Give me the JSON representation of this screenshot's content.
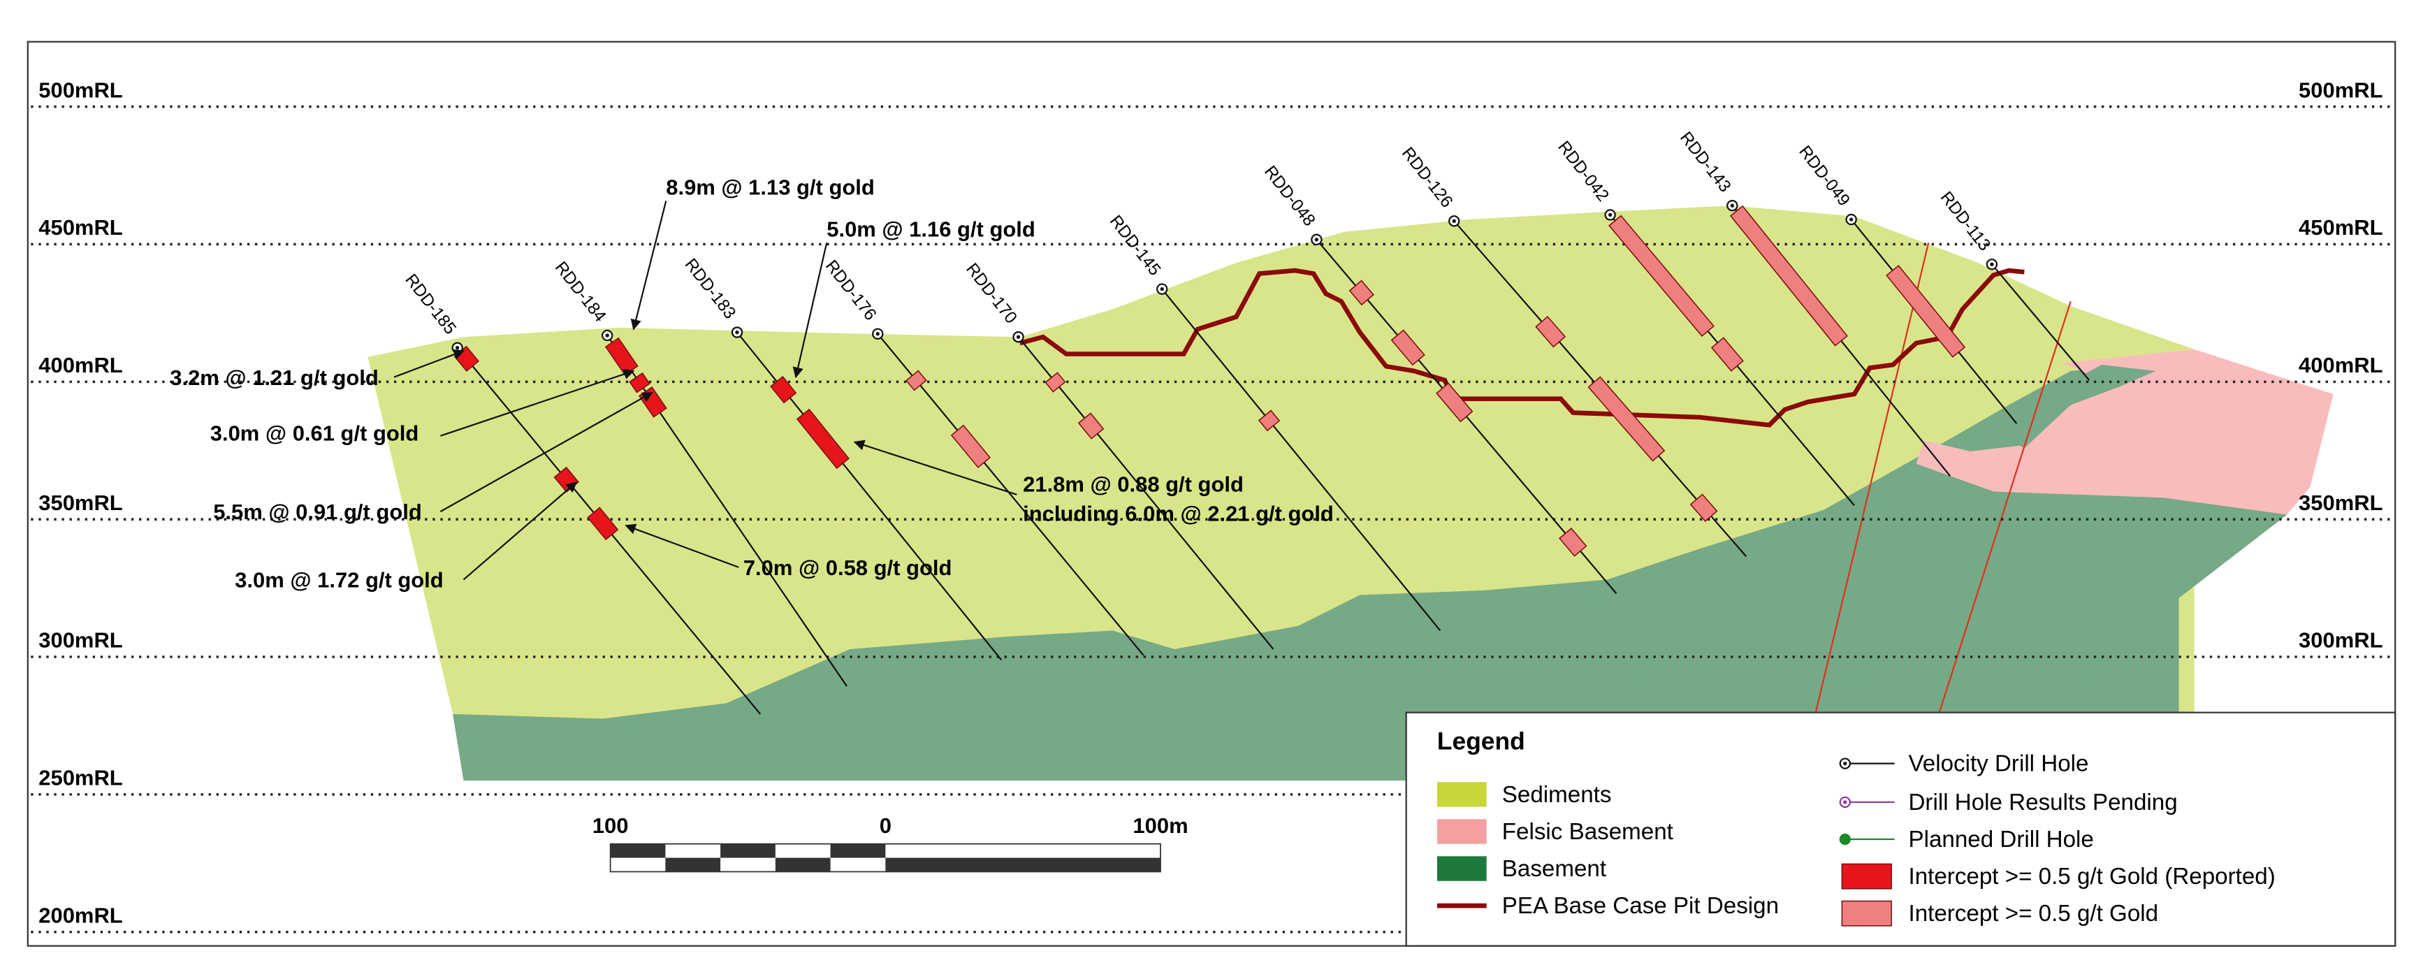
{
  "levels": [
    "500mRL",
    "450mRL",
    "400mRL",
    "350mRL",
    "300mRL",
    "250mRL",
    "200mRL"
  ],
  "drill_holes": [
    "RDD-185",
    "RDD-184",
    "RDD-183",
    "RDD-176",
    "RDD-170",
    "RDD-145",
    "RDD-048",
    "RDD-126",
    "RDD-042",
    "RDD-143",
    "RDD-049",
    "RDD-113"
  ],
  "intercepts": [
    "8.9m @ 1.13 g/t gold",
    "5.0m @ 1.16 g/t gold",
    "3.2m @ 1.21 g/t gold",
    "3.0m @ 0.61 g/t gold",
    "5.5m @ 0.91 g/t gold",
    "3.0m @ 1.72 g/t gold",
    "7.0m @ 0.58 g/t gold",
    "21.8m @ 0.88 g/t gold",
    "including 6.0m @ 2.21 g/t gold"
  ],
  "scale_bar": [
    "100",
    "0",
    "100m"
  ],
  "legend": {
    "title": "Legend",
    "items": [
      "Sediments",
      "Felsic Basement",
      "Basement",
      "PEA Base Case Pit Design",
      "Velocity Drill Hole",
      "Drill Hole Results Pending",
      "Planned Drill Hole",
      "Intercept >= 0.5 g/t Gold (Reported)",
      "Intercept >= 0.5 g/t Gold"
    ]
  }
}
